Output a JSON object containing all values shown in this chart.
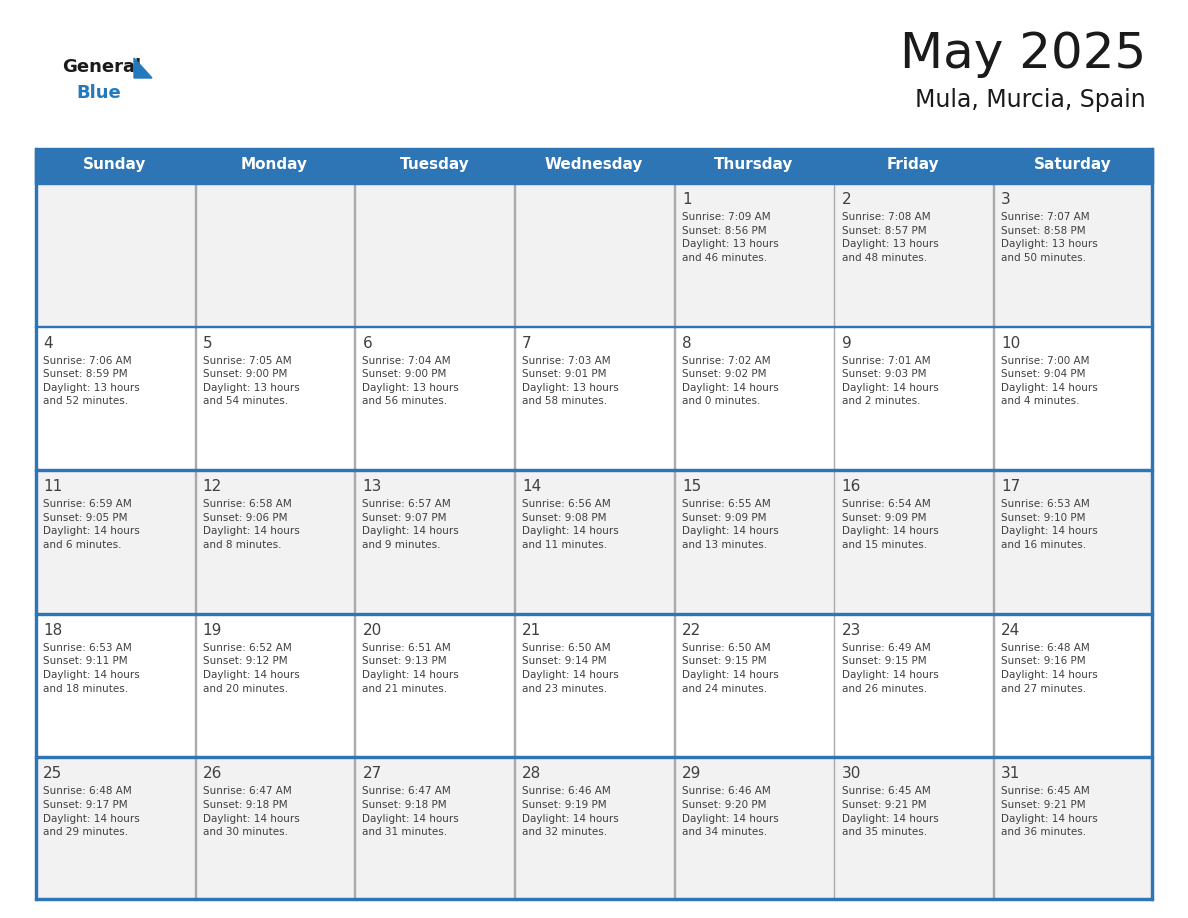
{
  "title": "May 2025",
  "subtitle": "Mula, Murcia, Spain",
  "header_bg_color": "#2E75B6",
  "header_text_color": "#FFFFFF",
  "day_names": [
    "Sunday",
    "Monday",
    "Tuesday",
    "Wednesday",
    "Thursday",
    "Friday",
    "Saturday"
  ],
  "row0_color": "#F2F2F2",
  "row1_color": "#FFFFFF",
  "row2_color": "#F2F2F2",
  "row3_color": "#FFFFFF",
  "row4_color": "#F2F2F2",
  "border_color": "#2E75B6",
  "cell_border_color": "#2E75B6",
  "text_color": "#404040",
  "date_color": "#404040",
  "logo_general_color": "#1A1A1A",
  "logo_blue_color": "#2479BD",
  "title_fontsize": 36,
  "subtitle_fontsize": 17,
  "dayname_fontsize": 11,
  "day_num_fontsize": 11,
  "info_fontsize": 7.5,
  "calendar": [
    [
      {
        "day": null,
        "info": ""
      },
      {
        "day": null,
        "info": ""
      },
      {
        "day": null,
        "info": ""
      },
      {
        "day": null,
        "info": ""
      },
      {
        "day": 1,
        "info": "Sunrise: 7:09 AM\nSunset: 8:56 PM\nDaylight: 13 hours\nand 46 minutes."
      },
      {
        "day": 2,
        "info": "Sunrise: 7:08 AM\nSunset: 8:57 PM\nDaylight: 13 hours\nand 48 minutes."
      },
      {
        "day": 3,
        "info": "Sunrise: 7:07 AM\nSunset: 8:58 PM\nDaylight: 13 hours\nand 50 minutes."
      }
    ],
    [
      {
        "day": 4,
        "info": "Sunrise: 7:06 AM\nSunset: 8:59 PM\nDaylight: 13 hours\nand 52 minutes."
      },
      {
        "day": 5,
        "info": "Sunrise: 7:05 AM\nSunset: 9:00 PM\nDaylight: 13 hours\nand 54 minutes."
      },
      {
        "day": 6,
        "info": "Sunrise: 7:04 AM\nSunset: 9:00 PM\nDaylight: 13 hours\nand 56 minutes."
      },
      {
        "day": 7,
        "info": "Sunrise: 7:03 AM\nSunset: 9:01 PM\nDaylight: 13 hours\nand 58 minutes."
      },
      {
        "day": 8,
        "info": "Sunrise: 7:02 AM\nSunset: 9:02 PM\nDaylight: 14 hours\nand 0 minutes."
      },
      {
        "day": 9,
        "info": "Sunrise: 7:01 AM\nSunset: 9:03 PM\nDaylight: 14 hours\nand 2 minutes."
      },
      {
        "day": 10,
        "info": "Sunrise: 7:00 AM\nSunset: 9:04 PM\nDaylight: 14 hours\nand 4 minutes."
      }
    ],
    [
      {
        "day": 11,
        "info": "Sunrise: 6:59 AM\nSunset: 9:05 PM\nDaylight: 14 hours\nand 6 minutes."
      },
      {
        "day": 12,
        "info": "Sunrise: 6:58 AM\nSunset: 9:06 PM\nDaylight: 14 hours\nand 8 minutes."
      },
      {
        "day": 13,
        "info": "Sunrise: 6:57 AM\nSunset: 9:07 PM\nDaylight: 14 hours\nand 9 minutes."
      },
      {
        "day": 14,
        "info": "Sunrise: 6:56 AM\nSunset: 9:08 PM\nDaylight: 14 hours\nand 11 minutes."
      },
      {
        "day": 15,
        "info": "Sunrise: 6:55 AM\nSunset: 9:09 PM\nDaylight: 14 hours\nand 13 minutes."
      },
      {
        "day": 16,
        "info": "Sunrise: 6:54 AM\nSunset: 9:09 PM\nDaylight: 14 hours\nand 15 minutes."
      },
      {
        "day": 17,
        "info": "Sunrise: 6:53 AM\nSunset: 9:10 PM\nDaylight: 14 hours\nand 16 minutes."
      }
    ],
    [
      {
        "day": 18,
        "info": "Sunrise: 6:53 AM\nSunset: 9:11 PM\nDaylight: 14 hours\nand 18 minutes."
      },
      {
        "day": 19,
        "info": "Sunrise: 6:52 AM\nSunset: 9:12 PM\nDaylight: 14 hours\nand 20 minutes."
      },
      {
        "day": 20,
        "info": "Sunrise: 6:51 AM\nSunset: 9:13 PM\nDaylight: 14 hours\nand 21 minutes."
      },
      {
        "day": 21,
        "info": "Sunrise: 6:50 AM\nSunset: 9:14 PM\nDaylight: 14 hours\nand 23 minutes."
      },
      {
        "day": 22,
        "info": "Sunrise: 6:50 AM\nSunset: 9:15 PM\nDaylight: 14 hours\nand 24 minutes."
      },
      {
        "day": 23,
        "info": "Sunrise: 6:49 AM\nSunset: 9:15 PM\nDaylight: 14 hours\nand 26 minutes."
      },
      {
        "day": 24,
        "info": "Sunrise: 6:48 AM\nSunset: 9:16 PM\nDaylight: 14 hours\nand 27 minutes."
      }
    ],
    [
      {
        "day": 25,
        "info": "Sunrise: 6:48 AM\nSunset: 9:17 PM\nDaylight: 14 hours\nand 29 minutes."
      },
      {
        "day": 26,
        "info": "Sunrise: 6:47 AM\nSunset: 9:18 PM\nDaylight: 14 hours\nand 30 minutes."
      },
      {
        "day": 27,
        "info": "Sunrise: 6:47 AM\nSunset: 9:18 PM\nDaylight: 14 hours\nand 31 minutes."
      },
      {
        "day": 28,
        "info": "Sunrise: 6:46 AM\nSunset: 9:19 PM\nDaylight: 14 hours\nand 32 minutes."
      },
      {
        "day": 29,
        "info": "Sunrise: 6:46 AM\nSunset: 9:20 PM\nDaylight: 14 hours\nand 34 minutes."
      },
      {
        "day": 30,
        "info": "Sunrise: 6:45 AM\nSunset: 9:21 PM\nDaylight: 14 hours\nand 35 minutes."
      },
      {
        "day": 31,
        "info": "Sunrise: 6:45 AM\nSunset: 9:21 PM\nDaylight: 14 hours\nand 36 minutes."
      }
    ]
  ],
  "row_colors": [
    "#F2F2F2",
    "#FFFFFF",
    "#F2F2F2",
    "#FFFFFF",
    "#F2F2F2"
  ]
}
